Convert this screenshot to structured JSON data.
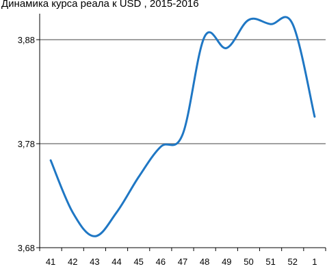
{
  "chart_data": {
    "type": "line",
    "title": "Динамика курса реала к USD , 2015-2016",
    "xlabel": "",
    "ylabel": "",
    "categories": [
      "41",
      "42",
      "43",
      "44",
      "45",
      "46",
      "47",
      "48",
      "49",
      "50",
      "51",
      "52",
      "1"
    ],
    "y_ticks": [
      "3,68",
      "3,78",
      "3,88"
    ],
    "y_tick_values": [
      3.68,
      3.78,
      3.88
    ],
    "ylim": [
      3.68,
      3.905
    ],
    "grid": "horizontal",
    "series": [
      {
        "color": "#1f77c4",
        "values": [
          3.764,
          3.714,
          3.691,
          3.714,
          3.748,
          3.777,
          3.789,
          3.883,
          3.872,
          3.899,
          3.895,
          3.895,
          3.806
        ]
      }
    ],
    "colors": {
      "line": "#1f77c4",
      "grid": "#808080",
      "axis": "#000000"
    }
  }
}
